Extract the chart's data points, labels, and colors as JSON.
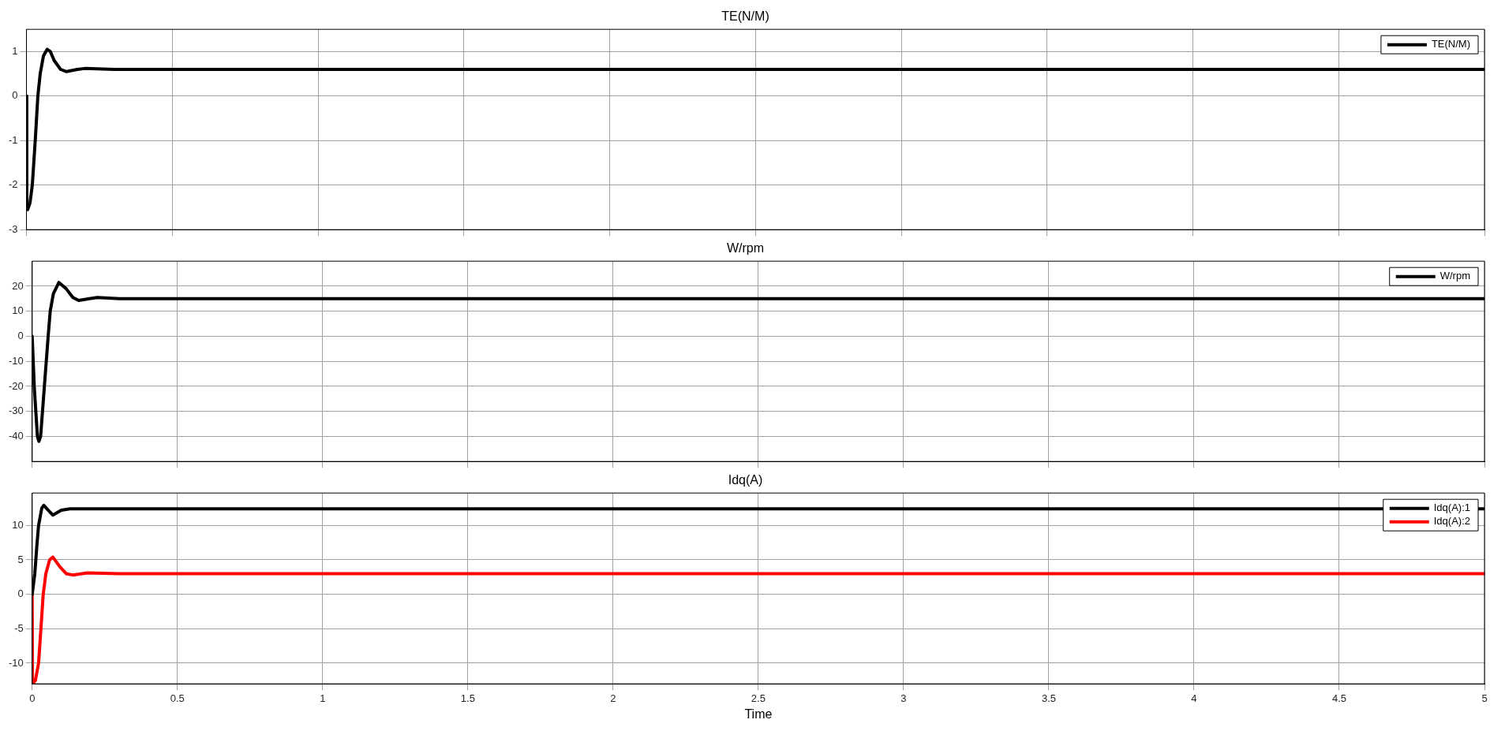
{
  "chart_data": [
    {
      "type": "line",
      "title": "TE(N/M)",
      "xlim": [
        0,
        5
      ],
      "xticks": [
        0,
        0.5,
        1,
        1.5,
        2,
        2.5,
        3,
        3.5,
        4,
        4.5,
        5
      ],
      "ylim": [
        -3,
        1.5
      ],
      "yticks": [
        -3,
        -2,
        -1,
        0,
        1
      ],
      "grid": true,
      "legend": "top right",
      "tick_labels": "y",
      "series": [
        {
          "name": "TE(N/M)",
          "color": "#000000",
          "x": [
            0,
            0.001,
            0.004,
            0.012,
            0.02,
            0.03,
            0.039,
            0.047,
            0.058,
            0.071,
            0.082,
            0.095,
            0.117,
            0.137,
            0.175,
            0.2,
            0.3,
            0.5,
            1,
            2,
            3,
            4,
            5
          ],
          "values": [
            0,
            -2.5,
            -2.55,
            -2.4,
            -2,
            -1,
            0,
            0.5,
            0.9,
            1.05,
            1,
            0.8,
            0.6,
            0.55,
            0.6,
            0.62,
            0.6,
            0.6,
            0.6,
            0.6,
            0.6,
            0.6,
            0.6
          ]
        }
      ]
    },
    {
      "type": "line",
      "title": "W/rpm",
      "xlim": [
        0,
        5
      ],
      "xticks": [
        0,
        0.5,
        1,
        1.5,
        2,
        2.5,
        3,
        3.5,
        4,
        4.5,
        5
      ],
      "ylim": [
        -50,
        30
      ],
      "yticks": [
        -40,
        -30,
        -20,
        -10,
        0,
        10,
        20
      ],
      "grid": true,
      "legend": "top right",
      "tick_labels": "y",
      "series": [
        {
          "name": "W/rpm",
          "color": "#000000",
          "x": [
            0,
            0.007,
            0.018,
            0.023,
            0.029,
            0.042,
            0.055,
            0.062,
            0.073,
            0.092,
            0.117,
            0.14,
            0.16,
            0.197,
            0.224,
            0.3,
            0.5,
            1,
            2,
            3,
            4,
            5
          ],
          "values": [
            0,
            -20,
            -40,
            -42,
            -40,
            -20,
            0,
            10,
            17,
            21.5,
            19,
            15.5,
            14.3,
            15,
            15.5,
            15,
            15,
            15,
            15,
            15,
            15,
            15
          ]
        }
      ]
    },
    {
      "type": "line",
      "title": "Idq(A)",
      "xlabel": "Time",
      "xlim": [
        0,
        5
      ],
      "xticks": [
        0,
        0.5,
        1,
        1.5,
        2,
        2.5,
        3,
        3.5,
        4,
        4.5,
        5
      ],
      "ylim": [
        -13,
        14.7
      ],
      "yticks": [
        -10,
        -5,
        0,
        5,
        10
      ],
      "grid": true,
      "legend": "top right",
      "series": [
        {
          "name": "Idq(A):1",
          "color": "#000000",
          "x": [
            0,
            0.009,
            0.016,
            0.022,
            0.033,
            0.04,
            0.06,
            0.071,
            0.1,
            0.13,
            0.5,
            1,
            2,
            3,
            4,
            5
          ],
          "values": [
            0,
            3,
            7,
            10,
            12.5,
            12.9,
            12,
            11.5,
            12.2,
            12.4,
            12.4,
            12.4,
            12.4,
            12.4,
            12.4,
            12.4
          ]
        },
        {
          "name": "Idq(A):2",
          "color": "#ff0000",
          "x": [
            0,
            0.001,
            0.011,
            0.022,
            0.03,
            0.038,
            0.047,
            0.06,
            0.071,
            0.095,
            0.117,
            0.14,
            0.19,
            0.3,
            0.5,
            1,
            2,
            3,
            4,
            5
          ],
          "values": [
            0,
            -13,
            -12.5,
            -10,
            -5,
            0,
            3,
            5,
            5.4,
            4,
            3,
            2.8,
            3.1,
            3,
            3,
            3,
            3,
            3,
            3,
            3
          ]
        }
      ]
    }
  ]
}
